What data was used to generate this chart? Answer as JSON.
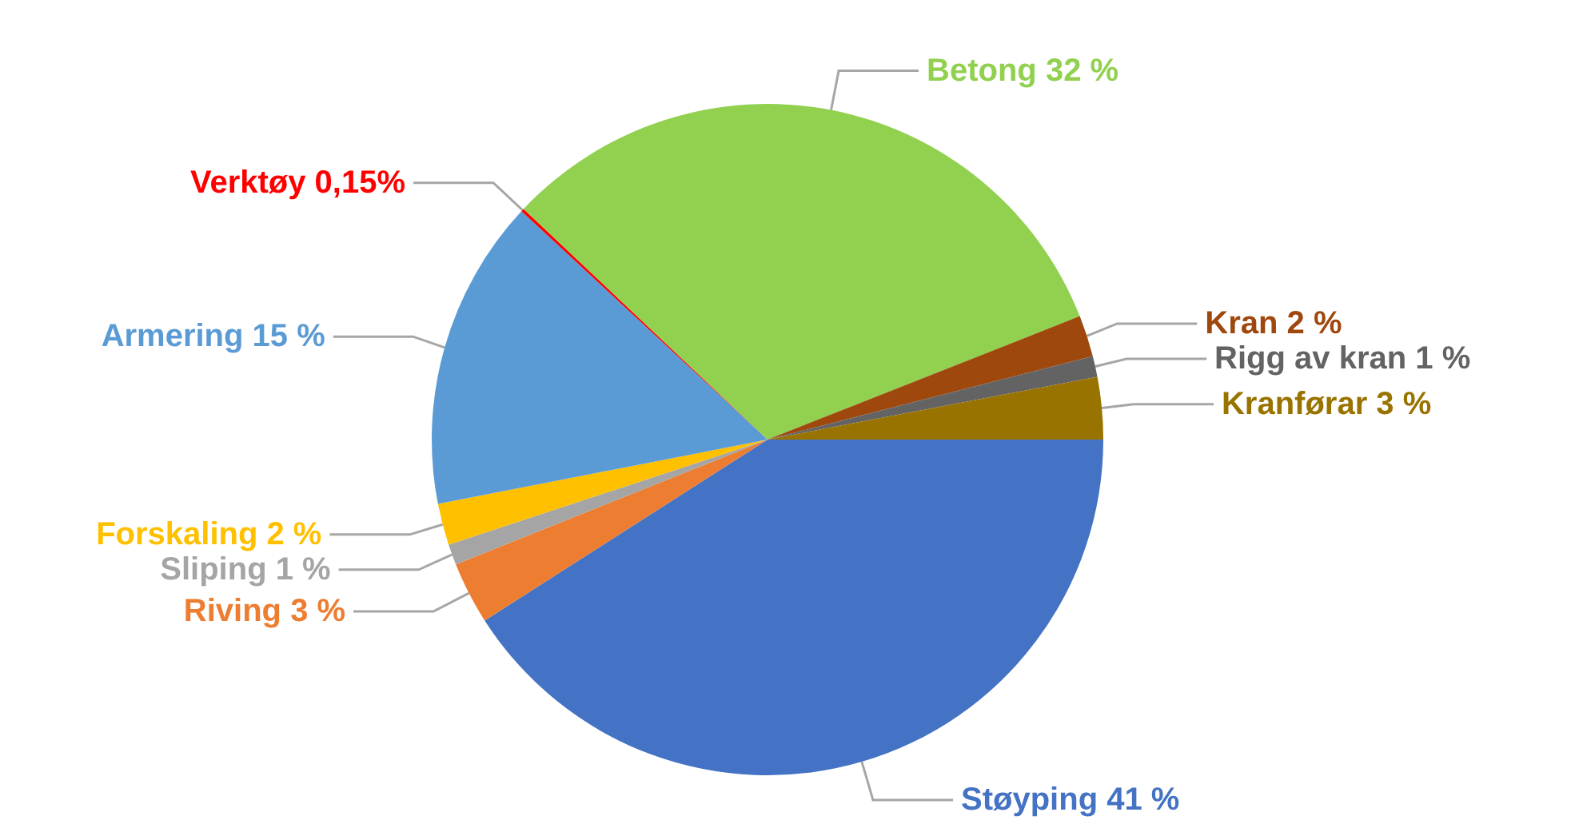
{
  "chart_data": {
    "type": "pie",
    "categories": [
      "Støyping",
      "Riving",
      "Sliping",
      "Forskaling",
      "Armering",
      "Verktøy",
      "Betong",
      "Kran",
      "Rigg av kran",
      "Kranførar"
    ],
    "values": [
      41,
      3,
      1,
      2,
      15,
      0.15,
      32,
      2,
      1,
      3
    ],
    "value_labels": [
      "41 %",
      "3 %",
      "1 %",
      "2 %",
      "15 %",
      "0,15%",
      "32 %",
      "2 %",
      "1 %",
      "3 %"
    ],
    "colors": [
      "#4472c4",
      "#ed7d31",
      "#a5a5a5",
      "#ffc000",
      "#5b9bd5",
      "#ff0000",
      "#92d050",
      "#9e480e",
      "#636363",
      "#997300"
    ],
    "legend": false
  }
}
